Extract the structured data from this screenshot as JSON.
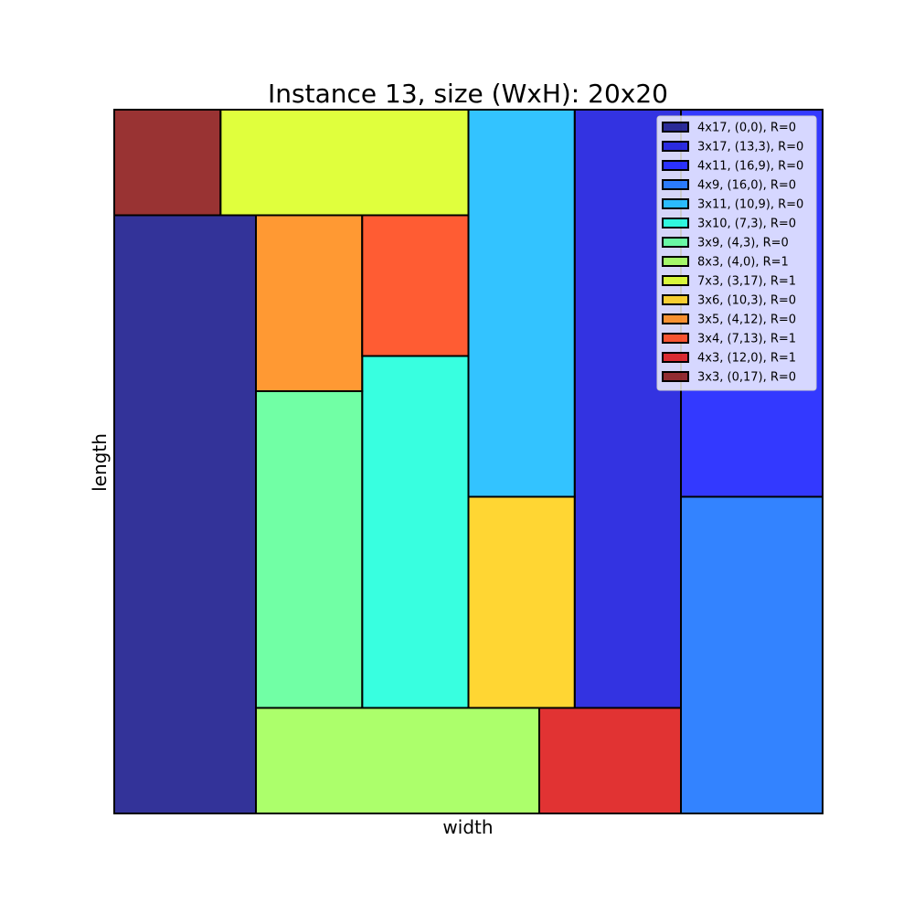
{
  "chart_data": {
    "type": "rectangle-packing",
    "title": "Instance 13, size (WxH): 20x20",
    "xlabel": "width",
    "ylabel": "length",
    "xlim": [
      0,
      20
    ],
    "ylim": [
      0,
      20
    ],
    "grid": false,
    "legend_position": "top-right",
    "rectangles": [
      {
        "label": "4x17, (0,0), R=0",
        "x": 0,
        "y": 0,
        "w": 4,
        "h": 17,
        "color": "#000080"
      },
      {
        "label": "3x17, (13,3), R=0",
        "x": 13,
        "y": 3,
        "w": 3,
        "h": 17,
        "color": "#0000d9"
      },
      {
        "label": "4x11, (16,9), R=0",
        "x": 16,
        "y": 9,
        "w": 4,
        "h": 11,
        "color": "#0008ff"
      },
      {
        "label": "4x9, (16,0), R=0",
        "x": 16,
        "y": 0,
        "w": 4,
        "h": 9,
        "color": "#0064ff"
      },
      {
        "label": "3x11, (10,9), R=0",
        "x": 10,
        "y": 9,
        "w": 3,
        "h": 11,
        "color": "#00b4ff"
      },
      {
        "label": "3x10, (7,3), R=0",
        "x": 7,
        "y": 3,
        "w": 3,
        "h": 10,
        "color": "#06ffd8"
      },
      {
        "label": "3x9, (4,3), R=0",
        "x": 4,
        "y": 3,
        "w": 3,
        "h": 9,
        "color": "#4dff8f"
      },
      {
        "label": "8x3, (4,0), R=1",
        "x": 4,
        "y": 0,
        "w": 8,
        "h": 3,
        "color": "#97ff46"
      },
      {
        "label": "7x3, (3,17), R=1",
        "x": 3,
        "y": 17,
        "w": 7,
        "h": 3,
        "color": "#d8ff0d"
      },
      {
        "label": "3x6, (10,3), R=0",
        "x": 10,
        "y": 3,
        "w": 3,
        "h": 6,
        "color": "#ffcc00"
      },
      {
        "label": "3x5, (4,12), R=0",
        "x": 4,
        "y": 12,
        "w": 3,
        "h": 5,
        "color": "#ff8000"
      },
      {
        "label": "3x4, (7,13), R=1",
        "x": 7,
        "y": 13,
        "w": 3,
        "h": 4,
        "color": "#ff3300"
      },
      {
        "label": "4x3, (12,0), R=1",
        "x": 12,
        "y": 0,
        "w": 4,
        "h": 3,
        "color": "#d90000"
      },
      {
        "label": "3x3, (0,17), R=0",
        "x": 0,
        "y": 17,
        "w": 3,
        "h": 3,
        "color": "#800000"
      }
    ]
  }
}
